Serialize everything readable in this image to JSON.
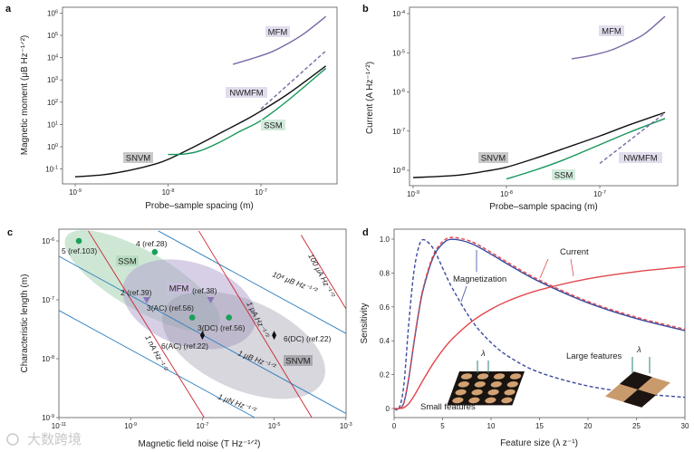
{
  "watermark": "大数跨境",
  "colors": {
    "mfm": "#7b68a6",
    "ssm": "#16965a",
    "snvm": "#111111",
    "red": "#d2333a",
    "blue_line": "#2f7fbf",
    "mag_blue": "#3b4a9e",
    "curr_red": "#e2474c"
  },
  "chart_data": [
    {
      "panel": "a",
      "type": "line",
      "xscale": "log",
      "yscale": "log",
      "xlabel": "Probe–sample spacing (m)",
      "ylabel": "Magnetic moment (μB Hz⁻¹ᐟ²)",
      "xlim": [
        1e-09,
        5e-07
      ],
      "ylim": [
        0.1,
        1000000
      ],
      "xticks": [
        "10^-9",
        "10^-8",
        "10^-7"
      ],
      "yticks": [
        "10^-1",
        "10^0",
        "10^1",
        "10^2",
        "10^3",
        "10^4",
        "10^5",
        "10^6"
      ],
      "series": [
        {
          "name": "SNVM",
          "color": "#111111",
          "dash": false,
          "points": [
            [
              1e-09,
              0.045
            ],
            [
              2e-09,
              0.055
            ],
            [
              4e-09,
              0.09
            ],
            [
              7e-09,
              0.16
            ],
            [
              1e-08,
              0.27
            ],
            [
              2e-08,
              1.1
            ],
            [
              4e-08,
              5
            ],
            [
              7e-08,
              17
            ],
            [
              1e-07,
              40
            ],
            [
              2e-07,
              250
            ],
            [
              5e-07,
              4200
            ]
          ]
        },
        {
          "name": "SSM",
          "color": "#16965a",
          "dash": false,
          "points": [
            [
              1e-08,
              0.45
            ],
            [
              1.5e-08,
              0.47
            ],
            [
              2.2e-08,
              0.65
            ],
            [
              3.5e-08,
              1.5
            ],
            [
              6e-08,
              5
            ],
            [
              1e-07,
              15
            ],
            [
              2e-07,
              130
            ],
            [
              5e-07,
              3300
            ]
          ]
        },
        {
          "name": "MFM",
          "color": "#7b68a6",
          "dash": false,
          "points": [
            [
              5e-08,
              5000
            ],
            [
              8e-08,
              9000
            ],
            [
              1.3e-07,
              18000
            ],
            [
              2e-07,
              45000
            ],
            [
              3e-07,
              130000
            ],
            [
              5e-07,
              700000
            ]
          ]
        },
        {
          "name": "NWMFM",
          "color": "#7b68a6",
          "dash": true,
          "points": [
            [
              1e-07,
              50
            ],
            [
              5e-07,
              20000
            ]
          ]
        }
      ],
      "labels": [
        "MFM",
        "NWMFM",
        "SSM",
        "SNVM"
      ]
    },
    {
      "panel": "b",
      "type": "line",
      "xscale": "log",
      "yscale": "log",
      "xlabel": "Probe–sample spacing (m)",
      "ylabel": "Current (A Hz⁻¹ᐟ²)",
      "xlim": [
        1e-09,
        5e-07
      ],
      "ylim": [
        1e-08,
        0.0001
      ],
      "xticks": [
        "10^-9",
        "10^-8",
        "10^-7"
      ],
      "yticks": [
        "10^-8",
        "10^-7",
        "10^-6",
        "10^-5",
        "10^-4"
      ],
      "series": [
        {
          "name": "SNVM",
          "color": "#111111",
          "dash": false,
          "points": [
            [
              1e-09,
              6.5e-09
            ],
            [
              3e-09,
              7.5e-09
            ],
            [
              6e-09,
              9.5e-09
            ],
            [
              1e-08,
              1.2e-08
            ],
            [
              2e-08,
              2e-08
            ],
            [
              4e-08,
              3.5e-08
            ],
            [
              1e-07,
              7.5e-08
            ],
            [
              2e-07,
              1.4e-07
            ],
            [
              5e-07,
              3e-07
            ]
          ]
        },
        {
          "name": "SSM",
          "color": "#16965a",
          "dash": false,
          "points": [
            [
              1e-08,
              6e-09
            ],
            [
              2e-08,
              1e-08
            ],
            [
              4e-08,
              1.8e-08
            ],
            [
              1e-07,
              4.5e-08
            ],
            [
              2e-07,
              9e-08
            ],
            [
              5e-07,
              2.1e-07
            ]
          ]
        },
        {
          "name": "MFM",
          "color": "#7b68a6",
          "dash": false,
          "points": [
            [
              5e-08,
              7e-06
            ],
            [
              8e-08,
              8.5e-06
            ],
            [
              1.3e-07,
              1.15e-05
            ],
            [
              2e-07,
              1.8e-05
            ],
            [
              3e-07,
              3e-05
            ],
            [
              5e-07,
              8.5e-05
            ]
          ]
        },
        {
          "name": "NWMFM",
          "color": "#7b68a6",
          "dash": true,
          "points": [
            [
              1e-07,
              1.5e-08
            ],
            [
              5e-07,
              2.9e-07
            ]
          ]
        }
      ],
      "labels": [
        "MFM",
        "SNVM",
        "SSM",
        "NWMFM"
      ]
    },
    {
      "panel": "c",
      "type": "scatter",
      "xscale": "log",
      "yscale": "log",
      "xlabel": "Magnetic field noise (T Hz⁻¹ᐟ²)",
      "ylabel": "Characteristic length (m)",
      "xlim": [
        1e-11,
        0.001
      ],
      "ylim": [
        1e-09,
        1e-06
      ],
      "xticks": [
        "10^-11",
        "10^-9",
        "10^-7",
        "10^-5",
        "10^-3"
      ],
      "yticks": [
        "10^-9",
        "10^-8",
        "10^-7",
        "10^-6"
      ],
      "regions": [
        "SSM",
        "MFM",
        "SNVM"
      ],
      "points": [
        {
          "label": "5 (ref.103)",
          "x": 3.6e-11,
          "y": 1e-06,
          "marker": "circle",
          "color": "#1aa05a"
        },
        {
          "label": "4 (ref.28)",
          "x": 4.7e-09,
          "y": 6.5e-07,
          "marker": "circle",
          "color": "#1aa05a"
        },
        {
          "label": "2 (ref.39)",
          "x": 2.8e-09,
          "y": 1e-07,
          "marker": "triangle",
          "color": "#8a74b8"
        },
        {
          "label": "1 (ref.38)",
          "x": 1.7e-07,
          "y": 1e-07,
          "marker": "triangle",
          "color": "#8a74b8"
        },
        {
          "label": "3(AC) (ref.56)",
          "x": 5.2e-08,
          "y": 5e-08,
          "marker": "circle",
          "color": "#1aa05a"
        },
        {
          "label": "3(DC) (ref.56)",
          "x": 5.5e-07,
          "y": 5e-08,
          "marker": "circle",
          "color": "#1aa05a"
        },
        {
          "label": "6(AC) (ref.22)",
          "x": 1e-07,
          "y": 2.5e-08,
          "marker": "diamond",
          "color": "#111111"
        },
        {
          "label": "6(DC) (ref.22)",
          "x": 1e-05,
          "y": 2.5e-08,
          "marker": "diamond",
          "color": "#111111"
        }
      ],
      "reference_lines": [
        {
          "label": "10⁴ μB Hz⁻¹ᐟ²",
          "kind": "moment",
          "from": [
            -8.23,
            -5.83
          ],
          "to": [
            -3,
            -7.57
          ]
        },
        {
          "label": "1 μB Hz⁻¹ᐟ²",
          "kind": "moment",
          "from": [
            -11,
            -6.26
          ],
          "to": [
            -3,
            -8.93
          ]
        },
        {
          "label": "1 μN Hz⁻¹ᐟ²",
          "kind": "moment",
          "from": [
            -11,
            -7.18
          ],
          "to": [
            -5.54,
            -9
          ]
        },
        {
          "label": "1 nA Hz⁻¹ᐟ²",
          "kind": "current",
          "from": [
            -10.18,
            -5.83
          ],
          "to": [
            -6.95,
            -9
          ]
        },
        {
          "label": "1 μA Hz⁻¹ᐟ²",
          "kind": "current",
          "from": [
            -7.1,
            -5.83
          ],
          "to": [
            -3.95,
            -9
          ]
        },
        {
          "label": "100 μA Hz⁻¹ᐟ²",
          "kind": "current",
          "from": [
            -4.25,
            -5.9
          ],
          "to": [
            -3,
            -7.15
          ]
        }
      ]
    },
    {
      "panel": "d",
      "type": "line",
      "xscale": "linear",
      "yscale": "linear",
      "xlabel": "Feature size (λ z⁻¹)",
      "ylabel": "Sensitivity",
      "xlim": [
        0,
        30
      ],
      "ylim": [
        0,
        1.0
      ],
      "xticks": [
        "0",
        "5",
        "10",
        "15",
        "20",
        "25",
        "30"
      ],
      "yticks": [
        "0",
        "0.2",
        "0.4",
        "0.6",
        "0.8",
        "1.0"
      ],
      "x": [
        0.5,
        1,
        1.5,
        2,
        2.5,
        3,
        4,
        5,
        6,
        8,
        10,
        12,
        15,
        20,
        25,
        30
      ],
      "series": [
        {
          "name": "Magnetization (solid)",
          "color": "#3b4a9e",
          "dash": false,
          "values": [
            0,
            0.032,
            0.173,
            0.369,
            0.553,
            0.702,
            0.888,
            0.972,
            0.999,
            0.973,
            0.911,
            0.843,
            0.749,
            0.624,
            0.531,
            0.46
          ]
        },
        {
          "name": "Current (dashed)",
          "color": "#e2474c",
          "dash": true,
          "values": [
            0,
            0.034,
            0.178,
            0.376,
            0.562,
            0.712,
            0.9,
            0.985,
            1.01,
            0.985,
            0.922,
            0.853,
            0.758,
            0.632,
            0.539,
            0.468
          ]
        },
        {
          "name": "Magnetization (dashed)",
          "color": "#3b4a9e",
          "dash": true,
          "values": [
            0.001,
            0.136,
            0.493,
            0.788,
            0.945,
            0.997,
            0.948,
            0.83,
            0.711,
            0.52,
            0.389,
            0.3,
            0.213,
            0.133,
            0.091,
            0.066
          ]
        },
        {
          "name": "Current (solid)",
          "color": "#e2474c",
          "dash": false,
          "values": [
            0,
            0.005,
            0.028,
            0.069,
            0.118,
            0.169,
            0.263,
            0.344,
            0.411,
            0.513,
            0.586,
            0.641,
            0.7,
            0.766,
            0.808,
            0.837
          ]
        }
      ],
      "annotations": {
        "current": "Current",
        "magnetization": "Magnetization",
        "small": "Small features",
        "large": "Large features",
        "lambda": "λ"
      }
    }
  ]
}
